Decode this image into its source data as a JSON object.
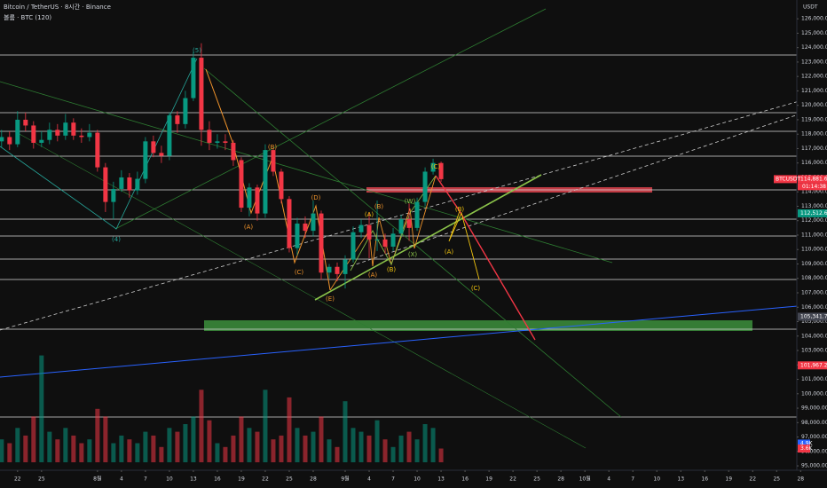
{
  "chart_data": {
    "type": "candlestick",
    "title": "Bitcoin / TetherUS · 8시간 · Binance",
    "subtitle": "볼륨 · BTC (120)",
    "currency": "USDT",
    "symbol_tag": "BTCUSDT",
    "countdown": "01:14:38",
    "categories": [
      null,
      null,
      null,
      null,
      null,
      null,
      null,
      null,
      null,
      null,
      null,
      null,
      null,
      null,
      null,
      null,
      null,
      null,
      null,
      null,
      null,
      null,
      null,
      null,
      null,
      null,
      null,
      null,
      null,
      null,
      null,
      null,
      null,
      null,
      null,
      null,
      null,
      null,
      null,
      null,
      null,
      null,
      null,
      null,
      null,
      null,
      null,
      null,
      null,
      null,
      null,
      null,
      null,
      null,
      null,
      null
    ],
    "open": [
      117500,
      117800,
      117300,
      119000,
      118600,
      117400,
      117600,
      118300,
      117900,
      118800,
      117900,
      117800,
      118100,
      115700,
      113300,
      114200,
      115000,
      114100,
      114900,
      117500,
      116700,
      116500,
      119300,
      118700,
      120500,
      123300,
      118300,
      117400,
      117500,
      117400,
      116200,
      112900,
      114300,
      112500,
      116900,
      115400,
      113500,
      110100,
      111800,
      111300,
      112500,
      108400,
      108800,
      108300,
      109300,
      111200,
      111700,
      110700,
      110700,
      110200,
      111100,
      112100,
      111500,
      113300,
      115400,
      116000
    ],
    "high": [
      118300,
      118200,
      119600,
      119500,
      118900,
      118200,
      118800,
      118700,
      119400,
      119100,
      118400,
      118700,
      118300,
      116000,
      114700,
      115500,
      115300,
      115400,
      117800,
      117900,
      117200,
      119500,
      119600,
      121000,
      123700,
      124300,
      118900,
      118000,
      118000,
      117600,
      116400,
      114600,
      114500,
      117300,
      117000,
      115600,
      113700,
      112200,
      112300,
      113400,
      112700,
      109000,
      109100,
      109600,
      111600,
      112100,
      112600,
      113400,
      111100,
      111500,
      112400,
      113200,
      113600,
      115700,
      116300,
      116100
    ],
    "low": [
      117100,
      116900,
      117100,
      118200,
      117000,
      117100,
      117300,
      117500,
      117600,
      117600,
      117400,
      117500,
      115400,
      112600,
      112100,
      114000,
      113600,
      113800,
      114600,
      116400,
      116000,
      116200,
      118100,
      118400,
      120300,
      117200,
      116900,
      117000,
      116900,
      115800,
      112600,
      112300,
      112000,
      112200,
      115100,
      113200,
      109800,
      109600,
      110800,
      110900,
      107900,
      108000,
      107800,
      107300,
      109100,
      110800,
      109400,
      109900,
      109700,
      109900,
      110900,
      110600,
      111300,
      113000,
      115200,
      114700
    ],
    "close": [
      117800,
      117300,
      119000,
      118600,
      117400,
      117600,
      118300,
      117900,
      118800,
      117900,
      117800,
      118100,
      115700,
      113300,
      114200,
      115000,
      114100,
      114900,
      117500,
      116700,
      116500,
      119300,
      118700,
      120500,
      123300,
      118300,
      117400,
      117500,
      117400,
      116200,
      112900,
      114300,
      112500,
      116900,
      115400,
      113500,
      110100,
      111800,
      111300,
      112500,
      108400,
      108800,
      108300,
      109300,
      111200,
      111700,
      110700,
      110700,
      110200,
      111100,
      112100,
      111500,
      113300,
      115400,
      116000,
      114881.69
    ],
    "volume": [
      6,
      5,
      9,
      7,
      12,
      28,
      8,
      6,
      9,
      7,
      5,
      6,
      14,
      12,
      5,
      7,
      6,
      5,
      8,
      7,
      4,
      9,
      8,
      10,
      12,
      19,
      11,
      5,
      4,
      7,
      12,
      9,
      8,
      19,
      6,
      7,
      17,
      9,
      7,
      8,
      12,
      6,
      4,
      16,
      9,
      8,
      7,
      11,
      6,
      4,
      7,
      8,
      6,
      10,
      9,
      3.6
    ],
    "volume_lim": [
      0,
      30
    ],
    "volume_tags": [
      {
        "value": 4.9,
        "label": "4.9K",
        "color": "#2962ff"
      },
      {
        "value": 3.6,
        "label": "3.6K",
        "color": "#f23645"
      }
    ],
    "up_color": "#089981",
    "down_color": "#f23645",
    "xlim": [
      -0.2,
      103.3
    ],
    "xticks": [
      {
        "value": 2,
        "label": "22"
      },
      {
        "value": 5,
        "label": "25"
      },
      {
        "value": 12,
        "label": "8월"
      },
      {
        "value": 15,
        "label": "4"
      },
      {
        "value": 18,
        "label": "7"
      },
      {
        "value": 21,
        "label": "10"
      },
      {
        "value": 24,
        "label": "13"
      },
      {
        "value": 27,
        "label": "16"
      },
      {
        "value": 30,
        "label": "19"
      },
      {
        "value": 33,
        "label": "22"
      },
      {
        "value": 36,
        "label": "25"
      },
      {
        "value": 39,
        "label": "28"
      },
      {
        "value": 43,
        "label": "9월"
      },
      {
        "value": 46,
        "label": "4"
      },
      {
        "value": 49,
        "label": "7"
      },
      {
        "value": 52,
        "label": "10"
      },
      {
        "value": 55,
        "label": "13"
      },
      {
        "value": 58,
        "label": "16"
      },
      {
        "value": 61,
        "label": "19"
      },
      {
        "value": 64,
        "label": "22"
      },
      {
        "value": 67,
        "label": "25"
      },
      {
        "value": 70,
        "label": "28"
      },
      {
        "value": 73,
        "label": "10월"
      },
      {
        "value": 76,
        "label": "4"
      },
      {
        "value": 79,
        "label": "7"
      },
      {
        "value": 82,
        "label": "10"
      },
      {
        "value": 85,
        "label": "13"
      },
      {
        "value": 88,
        "label": "16"
      },
      {
        "value": 91,
        "label": "19"
      },
      {
        "value": 94,
        "label": "22"
      },
      {
        "value": 97,
        "label": "25"
      },
      {
        "value": 100,
        "label": "28"
      }
    ],
    "ylim": [
      94696,
      127302
    ],
    "yticks": [
      {
        "value": 95000,
        "label": "95,000.00"
      },
      {
        "value": 96000,
        "label": "96,000.00"
      },
      {
        "value": 97000,
        "label": "97,000.00"
      },
      {
        "value": 98000,
        "label": "98,000.00"
      },
      {
        "value": 99000,
        "label": "99,000.00"
      },
      {
        "value": 100000,
        "label": "100,000.00"
      },
      {
        "value": 101000,
        "label": "101,000.00"
      },
      {
        "value": 102000,
        "label": "102,000.00"
      },
      {
        "value": 103000,
        "label": "103,000.00"
      },
      {
        "value": 104000,
        "label": "104,000.00"
      },
      {
        "value": 105000,
        "label": "105,000.00"
      },
      {
        "value": 106000,
        "label": "106,000.00"
      },
      {
        "value": 107000,
        "label": "107,000.00"
      },
      {
        "value": 108000,
        "label": "108,000.00"
      },
      {
        "value": 109000,
        "label": "109,000.00"
      },
      {
        "value": 110000,
        "label": "110,000.00"
      },
      {
        "value": 111000,
        "label": "111,000.00"
      },
      {
        "value": 112000,
        "label": "112,000.00"
      },
      {
        "value": 113000,
        "label": "113,000.00"
      },
      {
        "value": 114000,
        "label": "114,000.00"
      },
      {
        "value": 115000,
        "label": "115,000.00"
      },
      {
        "value": 116000,
        "label": "116,000.00"
      },
      {
        "value": 117000,
        "label": "117,000.00"
      },
      {
        "value": 118000,
        "label": "118,000.00"
      },
      {
        "value": 119000,
        "label": "119,000.00"
      },
      {
        "value": 120000,
        "label": "120,000.00"
      },
      {
        "value": 121000,
        "label": "121,000.00"
      },
      {
        "value": 122000,
        "label": "122,000.00"
      },
      {
        "value": 123000,
        "label": "123,000.00"
      },
      {
        "value": 124000,
        "label": "124,000.00"
      },
      {
        "value": 125000,
        "label": "125,000.00"
      },
      {
        "value": 126000,
        "label": "126,000.00"
      }
    ],
    "price_tags": [
      {
        "value": 114881.69,
        "label": "114,881.69",
        "color": "#f23645"
      },
      {
        "value": 112512.62,
        "label": "112,512.62",
        "color": "#089981"
      },
      {
        "value": 105341.79,
        "label": "105,341.79",
        "color": "#434651"
      },
      {
        "value": 101967.28,
        "label": "101,967.28",
        "color": "#f23645"
      }
    ],
    "annotations": [
      "(5)",
      "(4)",
      "(B)",
      "(A)",
      "(C)",
      "(D)",
      "(E)",
      "(A)",
      "(B)",
      "(A)",
      "(B)",
      "(W)",
      "(X)",
      "(C)",
      "(B)",
      "(A)",
      "(C)"
    ]
  }
}
